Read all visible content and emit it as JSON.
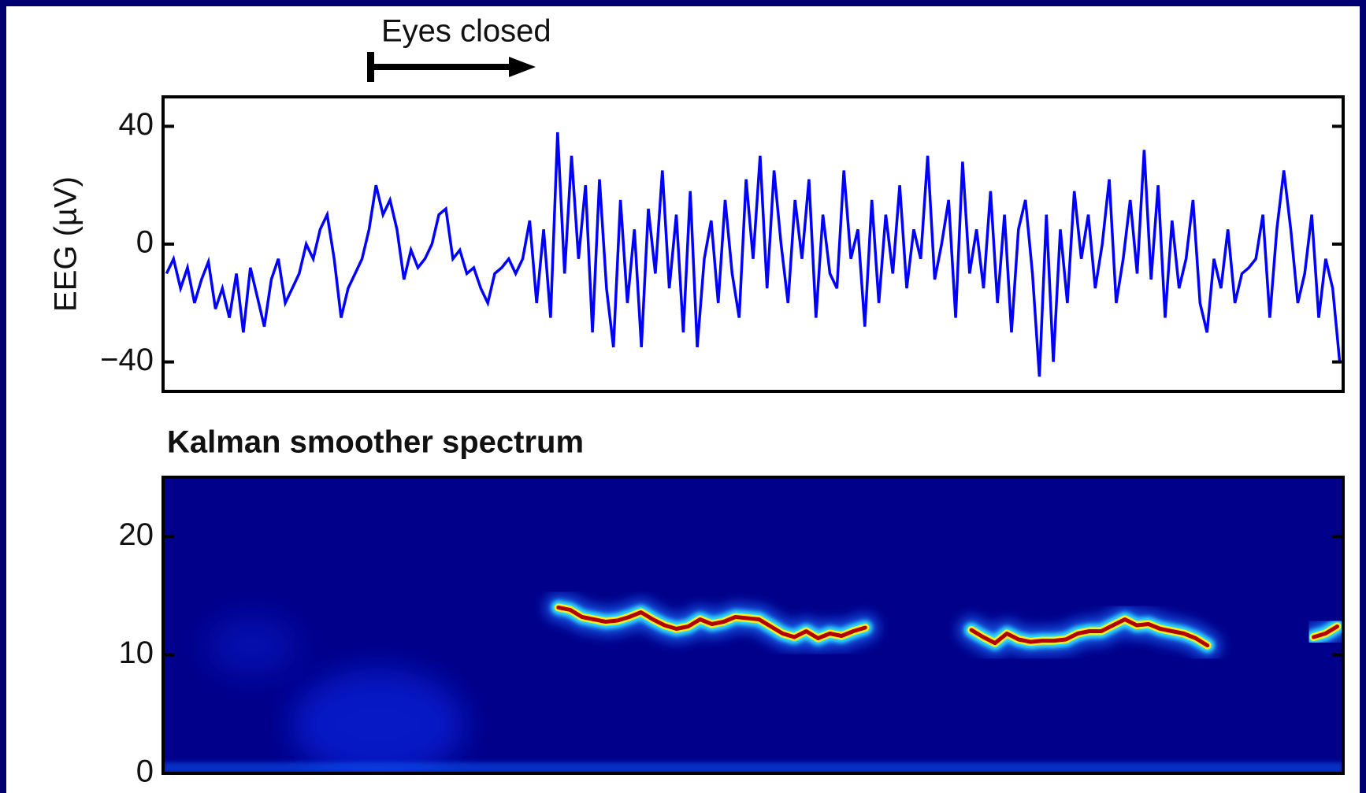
{
  "chart_data": [
    {
      "type": "line",
      "annotation": "Eyes closed",
      "ylabel": "EEG (µV)",
      "color": "#0000ff",
      "ylim": [
        -50,
        50
      ],
      "yticks": [
        {
          "value": -40,
          "label": "−40"
        },
        0,
        40
      ],
      "values": [
        -10,
        -5,
        -15,
        -8,
        -20,
        -12,
        -6,
        -22,
        -15,
        -25,
        -10,
        -30,
        -8,
        -18,
        -28,
        -12,
        -5,
        -20,
        -15,
        -10,
        0,
        -5,
        5,
        10,
        -5,
        -25,
        -15,
        -10,
        -5,
        5,
        20,
        10,
        15,
        5,
        -12,
        -2,
        -8,
        -5,
        0,
        10,
        12,
        -5,
        -2,
        -10,
        -8,
        -15,
        -20,
        -10,
        -8,
        -5,
        -10,
        -5,
        8,
        -20,
        5,
        -25,
        38,
        -10,
        30,
        -5,
        20,
        -30,
        22,
        -15,
        -35,
        15,
        -20,
        5,
        -35,
        12,
        -10,
        25,
        -15,
        10,
        -30,
        18,
        -35,
        -5,
        8,
        -20,
        15,
        -10,
        -25,
        22,
        -5,
        30,
        -15,
        25,
        0,
        -20,
        15,
        -5,
        22,
        -25,
        10,
        -10,
        -15,
        25,
        -5,
        5,
        -28,
        15,
        -20,
        10,
        -10,
        20,
        -15,
        5,
        -5,
        30,
        -12,
        0,
        15,
        -25,
        28,
        -10,
        5,
        -15,
        18,
        -20,
        10,
        -30,
        5,
        15,
        -10,
        -45,
        10,
        -40,
        5,
        -20,
        18,
        -5,
        10,
        -15,
        0,
        22,
        -20,
        -5,
        15,
        -10,
        32,
        -12,
        20,
        -25,
        8,
        -15,
        -5,
        15,
        -20,
        -30,
        -5,
        -15,
        5,
        -20,
        -10,
        -8,
        -5,
        10,
        -25,
        5,
        25,
        5,
        -20,
        -10,
        10,
        -25,
        -5,
        -15,
        -40
      ]
    },
    {
      "type": "heatmap",
      "title": "Kalman smoother spectrum",
      "ylim": [
        0,
        25
      ],
      "yticks": [
        0,
        10,
        20
      ],
      "values": [
        null,
        null,
        null,
        null,
        null,
        null,
        null,
        null,
        null,
        null,
        null,
        null,
        null,
        null,
        null,
        null,
        null,
        null,
        null,
        null,
        null,
        null,
        null,
        null,
        null,
        null,
        null,
        null,
        null,
        null,
        null,
        null,
        null,
        14,
        13.8,
        13.2,
        13,
        12.8,
        12.9,
        13.2,
        13.6,
        13,
        12.5,
        12.2,
        12.4,
        13,
        12.6,
        12.8,
        13.2,
        13.1,
        13,
        12.4,
        11.8,
        11.5,
        12,
        11.4,
        11.8,
        11.6,
        12,
        12.3,
        null,
        null,
        null,
        null,
        null,
        null,
        null,
        null,
        12.1,
        11.5,
        11,
        11.8,
        11.3,
        11.1,
        11.2,
        11.2,
        11.3,
        11.8,
        12,
        12,
        12.5,
        13,
        12.5,
        12.6,
        12.2,
        12,
        11.8,
        11.4,
        10.8,
        null,
        null,
        null,
        null,
        null,
        null,
        null,
        null,
        11.5,
        11.8,
        12.4
      ]
    }
  ]
}
